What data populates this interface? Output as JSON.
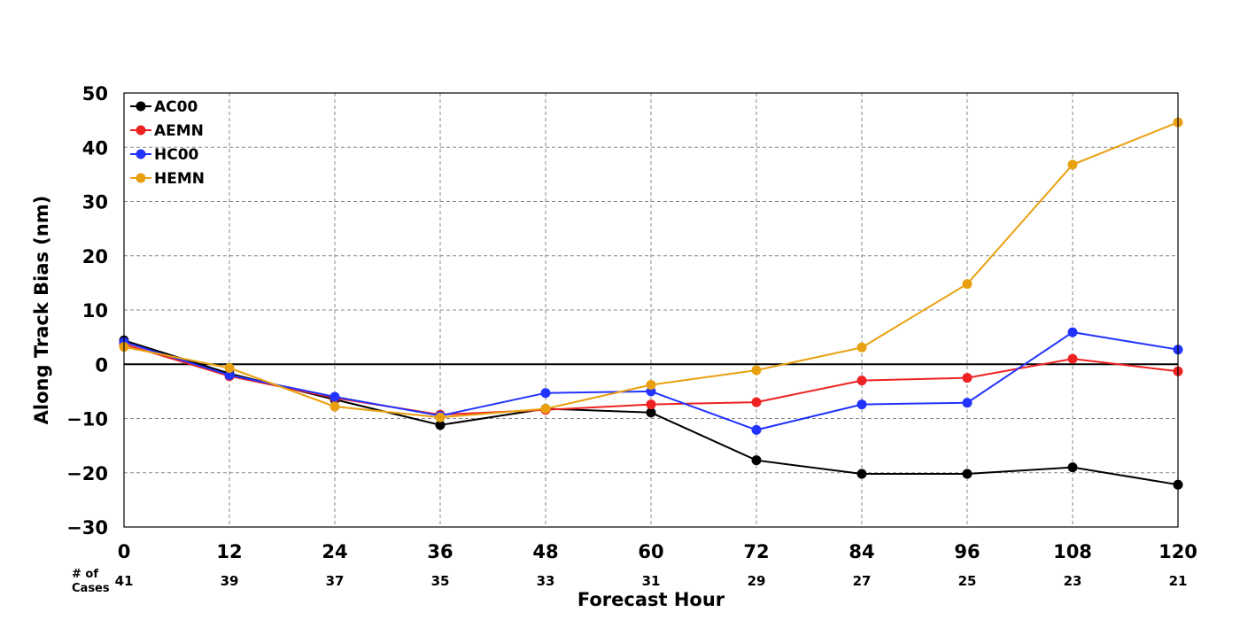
{
  "chart_data": {
    "type": "line",
    "xlabel": "Forecast Hour",
    "ylabel": "Along Track Bias (nm)",
    "x": [
      0,
      12,
      24,
      36,
      48,
      60,
      72,
      84,
      96,
      108,
      120
    ],
    "xticks": [
      "0",
      "12",
      "24",
      "36",
      "48",
      "60",
      "72",
      "84",
      "96",
      "108",
      "120"
    ],
    "yticks": [
      "50",
      "40",
      "30",
      "20",
      "10",
      "0",
      "−10",
      "−20",
      "−30"
    ],
    "ylim": [
      -30,
      50
    ],
    "xlim": [
      0,
      120
    ],
    "grid": true,
    "legend_position": "top-left",
    "cases_label_line1": "# of",
    "cases_label_line2": "Cases",
    "cases": [
      "41",
      "39",
      "37",
      "35",
      "33",
      "31",
      "29",
      "27",
      "25",
      "23",
      "21"
    ],
    "series": [
      {
        "name": "AC00",
        "color": "#000000",
        "values": [
          4.4,
          -1.7,
          -6.5,
          -11.2,
          -8.2,
          -8.9,
          -17.7,
          -20.2,
          -20.2,
          -19.0,
          -22.2
        ]
      },
      {
        "name": "AEMN",
        "color": "#ee2222",
        "values": [
          3.7,
          -2.2,
          -6.2,
          -9.3,
          -8.4,
          -7.4,
          -7.0,
          -3.0,
          -2.5,
          1.0,
          -1.3
        ]
      },
      {
        "name": "HC00",
        "color": "#2233ff",
        "values": [
          4.1,
          -2.0,
          -6.0,
          -9.5,
          -5.3,
          -5.0,
          -12.1,
          -7.4,
          -7.1,
          5.9,
          2.7
        ]
      },
      {
        "name": "HEMN",
        "color": "#e8a010",
        "values": [
          3.2,
          -0.7,
          -7.8,
          -9.8,
          -8.2,
          -3.8,
          -1.1,
          3.1,
          14.8,
          36.8,
          44.6
        ]
      }
    ]
  }
}
